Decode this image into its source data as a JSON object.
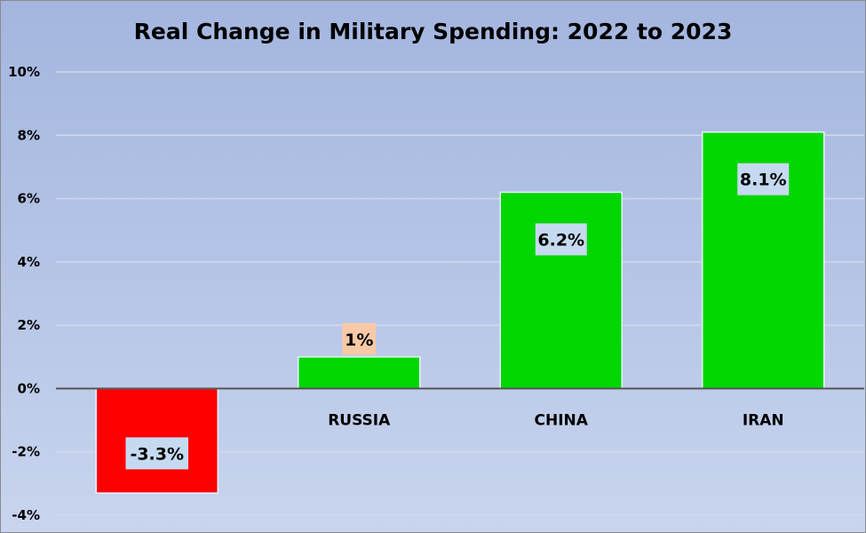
{
  "chart_data": {
    "type": "bar",
    "title": "Real Change in Military Spending: 2022 to 2023",
    "xlabel": "",
    "ylabel": "",
    "categories": [
      "",
      "RUSSIA",
      "CHINA",
      "IRAN"
    ],
    "values": [
      -3.3,
      1,
      6.2,
      8.1
    ],
    "data_labels": [
      "-3.3%",
      "1%",
      "6.2%",
      "8.1%"
    ],
    "ylim": [
      -4,
      10
    ],
    "yticks": [
      10,
      8,
      6,
      4,
      2,
      0,
      -2,
      -4
    ],
    "ytick_labels": [
      "10%",
      "8%",
      "6%",
      "4%",
      "2%",
      "0%",
      "-2%",
      "-4%"
    ],
    "grid": true,
    "legend": "none",
    "colors": {
      "positive_bar": "#00d600",
      "negative_bar": "#ff0000",
      "label_box": "#c5daf0",
      "small_label_box": "#f8c9a6",
      "gridline": "#d0d9ee",
      "zero_line": "#555555"
    }
  }
}
